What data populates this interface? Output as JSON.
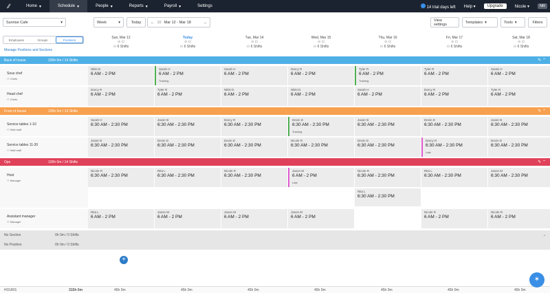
{
  "nav": {
    "items": [
      "Home",
      "Schedule",
      "People",
      "Reports",
      "Payroll",
      "Settings"
    ],
    "trial": "14 trial days left",
    "help": "Help",
    "upgrade": "Upgrade",
    "user": "Nicole",
    "initials": "NR"
  },
  "toolbar": {
    "location": "Sunrise Cafe",
    "view": "Week",
    "today": "Today",
    "week_num": "10",
    "range": "Mar 12 - Mar 18",
    "view_settings": "View settings",
    "templates": "Templates",
    "tools": "Tools",
    "filters": "Filters"
  },
  "tabs": [
    "Employees",
    "Groups",
    "Positions"
  ],
  "manage": "Manage Positions and Sections",
  "days": [
    {
      "name": "Sun, Mar 12",
      "shifts": "6 Shifts"
    },
    {
      "name": "Today",
      "shifts": "6 Shifts"
    },
    {
      "name": "Tue, Mar 14",
      "shifts": "6 Shifts"
    },
    {
      "name": "Wed, Mar 15",
      "shifts": "6 Shifts"
    },
    {
      "name": "Thu, Mar 16",
      "shifts": "6 Shifts"
    },
    {
      "name": "Fri, Mar 17",
      "shifts": "6 Shifts"
    },
    {
      "name": "Sat, Mar 18",
      "shifts": "6 Shifts"
    }
  ],
  "groups": [
    {
      "name": "Back of house",
      "stats": "105h 0m / 14 Shifts",
      "color": "#4fb0e6"
    },
    {
      "name": "Front of house",
      "stats": "105h 0m / 14 Shifts",
      "color": "#f7a04f"
    },
    {
      "name": "Ops",
      "stats": "105h 0m / 14 Shifts",
      "color": "#e0415a"
    }
  ],
  "positions": [
    {
      "name": "Sous chef",
      "role": "Chefs"
    },
    {
      "name": "Head chef",
      "role": "Chefs"
    },
    {
      "name": "Service tables 1-10",
      "role": "Wait staff"
    },
    {
      "name": "Service tables 11-20",
      "role": "Wait staff"
    },
    {
      "name": "Host",
      "role": "Manager"
    },
    {
      "name": "Assistant manager",
      "role": "Manager"
    }
  ],
  "rows": [
    [
      {
        "n": "Nikki D",
        "t": "6 AM - 2 PM"
      },
      {
        "n": "Sarah H",
        "t": "6 AM - 2 PM",
        "b": "Training",
        "c": "#4cae4f"
      },
      {
        "n": "Sarah H",
        "t": "6 AM - 2 PM"
      },
      {
        "n": "Darcy R",
        "t": "6 AM - 2 PM"
      },
      {
        "n": "Tyler R",
        "t": "6 AM - 2 PM",
        "b": "Training",
        "c": "#4cae4f"
      },
      {
        "n": "Tyler R",
        "t": "6 AM - 2 PM"
      },
      {
        "n": "Sarah H",
        "t": "6 AM - 2 PM"
      }
    ],
    [
      {
        "n": "Darcy R",
        "t": "6 AM - 2 PM"
      },
      {
        "n": "Tyler R",
        "t": "6 AM - 2 PM"
      },
      {
        "n": "Nikki D",
        "t": "6 AM - 2 PM"
      },
      {
        "n": "Nikki D",
        "t": "6 AM - 2 PM"
      },
      {
        "n": "Sarah H",
        "t": "6 AM - 2 PM"
      },
      {
        "n": "Darcy R",
        "t": "6 AM - 2 PM"
      },
      {
        "n": "Tyler R",
        "t": "6 AM - 2 PM"
      }
    ],
    [
      {
        "n": "Sarah H",
        "t": "6:30 AM - 2:30 PM"
      },
      {
        "n": "Javier B",
        "t": "6:30 AM - 2:30 PM"
      },
      {
        "n": "Darcy R",
        "t": "6:30 AM - 2:30 PM"
      },
      {
        "n": "Devin D",
        "t": "6:30 AM - 2:30 PM",
        "b": "Training",
        "c": "#4cae4f"
      },
      {
        "n": "Javier B",
        "t": "6:30 AM - 2:30 PM"
      },
      {
        "n": "Devin D",
        "t": "6:30 AM - 2:30 PM"
      },
      {
        "n": "Javier B",
        "t": "6:30 AM - 2:30 PM"
      }
    ],
    [
      {
        "n": "Javier B",
        "t": "6:30 AM - 2:30 PM"
      },
      {
        "n": "Devin D",
        "t": "6:30 AM - 2:30 PM"
      },
      {
        "n": "Devin D",
        "t": "6:30 AM - 2:30 PM"
      },
      {
        "n": "Nicole R",
        "t": "6:30 AM - 2:30 PM"
      },
      {
        "n": "Devin D",
        "t": "6:30 AM - 2:30 PM"
      },
      {
        "n": "Darcy R",
        "t": "6:30 AM - 2:30 PM",
        "b": "Late",
        "c": "#e05ad0"
      },
      {
        "n": "Devin D",
        "t": "6:30 AM - 2:30 PM"
      }
    ],
    [
      {
        "n": "Nicole R",
        "t": "6:30 AM - 2:30 PM"
      },
      {
        "n": "Rita L",
        "t": "6:30 AM - 2:30 PM"
      },
      {
        "n": "Nicole R",
        "t": "6:30 AM - 2:30 PM"
      },
      {
        "n": "Jason M",
        "t": "6 AM - 2 PM",
        "b": "Late",
        "c": "#e05ad0"
      },
      {
        "n": "Nicole R",
        "t": "6:30 AM - 2:30 PM"
      },
      {
        "n": "Rita L",
        "t": "6:30 AM - 2:30 PM"
      },
      {
        "n": "Jason M",
        "t": "6:30 AM - 2:30 PM"
      }
    ],
    [
      {
        "n": "Rita L",
        "t": "6 AM - 2 PM"
      },
      {
        "n": "Jason M",
        "t": "6 AM - 2 PM"
      },
      {
        "n": "Jason M",
        "t": "6 AM - 2 PM"
      },
      {
        "n": "Jason M",
        "t": "6 AM - 2 PM"
      },
      null,
      {
        "n": "Nicole R",
        "t": "6 AM - 2 PM"
      },
      {
        "n": "Nicole R",
        "t": "6 AM - 2 PM"
      }
    ]
  ],
  "host_extra": {
    "n": "Rita L",
    "t": "6:30 AM - 2:30 PM"
  },
  "no_section": {
    "name": "No Section",
    "stats": "0h 0m / 0 Shifts"
  },
  "no_position": {
    "name": "No Position",
    "stats": "0h 0m / 0 Shifts"
  },
  "footer": {
    "label": "HOURS",
    "total": "315h 0m",
    "days": [
      "45h 0m",
      "45h 0m",
      "45h 0m",
      "45h 0m",
      "45h 0m",
      "45h 0m",
      "45h 0m"
    ]
  }
}
